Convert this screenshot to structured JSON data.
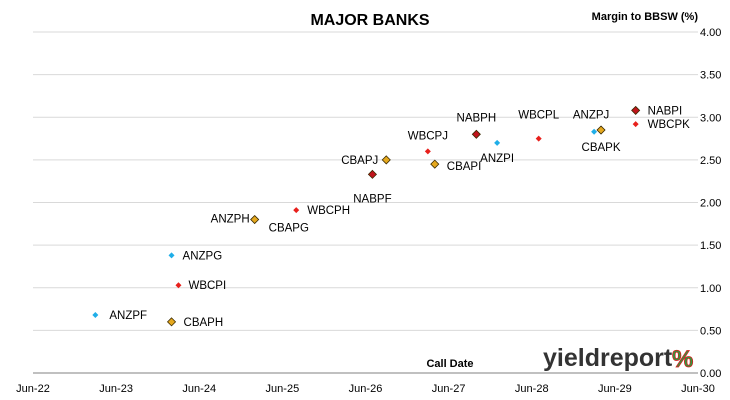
{
  "chart_data": {
    "type": "scatter",
    "title": "MAJOR BANKS",
    "ylabel": "Margin to BBSW (%)",
    "xlabel": "Call Date",
    "ylim": [
      0,
      4
    ],
    "yticks": [
      "0.00",
      "0.50",
      "1.00",
      "1.50",
      "2.00",
      "2.50",
      "3.00",
      "3.50",
      "4.00"
    ],
    "xlim": [
      "2022-06",
      "2030-06"
    ],
    "xticks": [
      "Jun-22",
      "Jun-23",
      "Jun-24",
      "Jun-25",
      "Jun-26",
      "Jun-27",
      "Jun-28",
      "Jun-29",
      "Jun-30"
    ],
    "grid": "horizontal",
    "points": [
      {
        "label": "ANZPF",
        "x": "2023-03",
        "y": 0.68,
        "color": "#1faee8"
      },
      {
        "label": "ANZPG",
        "x": "2024-02",
        "y": 1.38,
        "color": "#1faee8"
      },
      {
        "label": "ANZPH",
        "x": "2025-02",
        "y": 1.81,
        "color": "#1faee8"
      },
      {
        "label": "ANZPI",
        "x": "2028-01",
        "y": 2.7,
        "color": "#1faee8"
      },
      {
        "label": "ANZPJ",
        "x": "2029-03",
        "y": 2.83,
        "color": "#1faee8"
      },
      {
        "label": "WBCPI",
        "x": "2024-03",
        "y": 1.03,
        "color": "#e8201c"
      },
      {
        "label": "WBCPH",
        "x": "2025-08",
        "y": 1.91,
        "color": "#e8201c"
      },
      {
        "label": "WBCPJ",
        "x": "2027-03",
        "y": 2.6,
        "color": "#e8201c"
      },
      {
        "label": "WBCPL",
        "x": "2028-07",
        "y": 2.75,
        "color": "#e8201c"
      },
      {
        "label": "WBCPK",
        "x": "2029-09",
        "y": 2.92,
        "color": "#e8201c"
      },
      {
        "label": "CBAPH",
        "x": "2024-02",
        "y": 0.6,
        "color": "#e5a81e"
      },
      {
        "label": "CBAPG",
        "x": "2025-02",
        "y": 1.8,
        "color": "#e5a81e"
      },
      {
        "label": "CBAPJ",
        "x": "2026-09",
        "y": 2.5,
        "color": "#e5a81e"
      },
      {
        "label": "CBAPI",
        "x": "2027-04",
        "y": 2.45,
        "color": "#e5a81e"
      },
      {
        "label": "CBAPK",
        "x": "2029-04",
        "y": 2.85,
        "color": "#e5a81e"
      },
      {
        "label": "NABPF",
        "x": "2026-07",
        "y": 2.33,
        "color": "#c0141c"
      },
      {
        "label": "NABPH",
        "x": "2027-10",
        "y": 2.8,
        "color": "#c0141c"
      },
      {
        "label": "NABPI",
        "x": "2029-09",
        "y": 3.08,
        "color": "#c0141c"
      }
    ]
  },
  "logo": {
    "text": "yieldreport",
    "text_part1": "yield",
    "text_part2": "report",
    "pct": "%",
    "colors": {
      "dark": "#333333",
      "green": "#2e9a3e",
      "red": "#d42020"
    }
  }
}
